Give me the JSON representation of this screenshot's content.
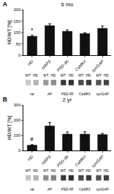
{
  "chart_data": [
    {
      "type": "bar",
      "title": "6 mo",
      "categories": [
        "HD",
        "HAPS",
        "PSD-95",
        "CaMKII",
        "synGAP"
      ],
      "values": [
        83,
        130,
        105,
        95,
        118
      ],
      "errors": [
        5,
        8,
        6,
        4,
        10
      ],
      "color": "#111111",
      "ylabel": "HD/WT [%]",
      "ylim": [
        0,
        200
      ],
      "yticks": [
        0,
        50,
        100,
        150,
        200
      ],
      "grid": false,
      "annotations": [
        {
          "text": "A"
        },
        {
          "text": "*",
          "category": "HD"
        }
      ]
    },
    {
      "type": "blot",
      "categories": [
        "tat",
        "AP",
        "PSD-95",
        "CaMKII",
        "synGAP"
      ],
      "series": [
        {
          "name": "WT",
          "values": [
            0.78,
            0.6,
            0.22,
            0.28,
            0.32
          ]
        },
        {
          "name": "HD",
          "values": [
            0.7,
            0.55,
            0.18,
            0.22,
            0.26
          ]
        }
      ]
    },
    {
      "type": "bar",
      "title": "2 yr",
      "categories": [
        "HD",
        "HAPS",
        "PSD-95",
        "CaMKII",
        "synGAP"
      ],
      "values": [
        35,
        162,
        108,
        108,
        105
      ],
      "errors": [
        4,
        22,
        14,
        16,
        8
      ],
      "color": "#111111",
      "ylabel": "HD/WT [%]",
      "ylim": [
        0,
        300
      ],
      "yticks": [
        0,
        100,
        200,
        300
      ],
      "grid": false,
      "annotations": [
        {
          "text": "B"
        },
        {
          "text": "#",
          "category": "HD"
        }
      ]
    },
    {
      "type": "blot",
      "categories": [
        "tat",
        "AP",
        "PSD-95",
        "CaMKII",
        "synGAP"
      ],
      "series": [
        {
          "name": "WT",
          "values": [
            0.78,
            0.55,
            0.22,
            0.28,
            0.32
          ]
        },
        {
          "name": "HD",
          "values": [
            0.7,
            0.5,
            0.18,
            0.22,
            0.26
          ]
        }
      ]
    }
  ]
}
